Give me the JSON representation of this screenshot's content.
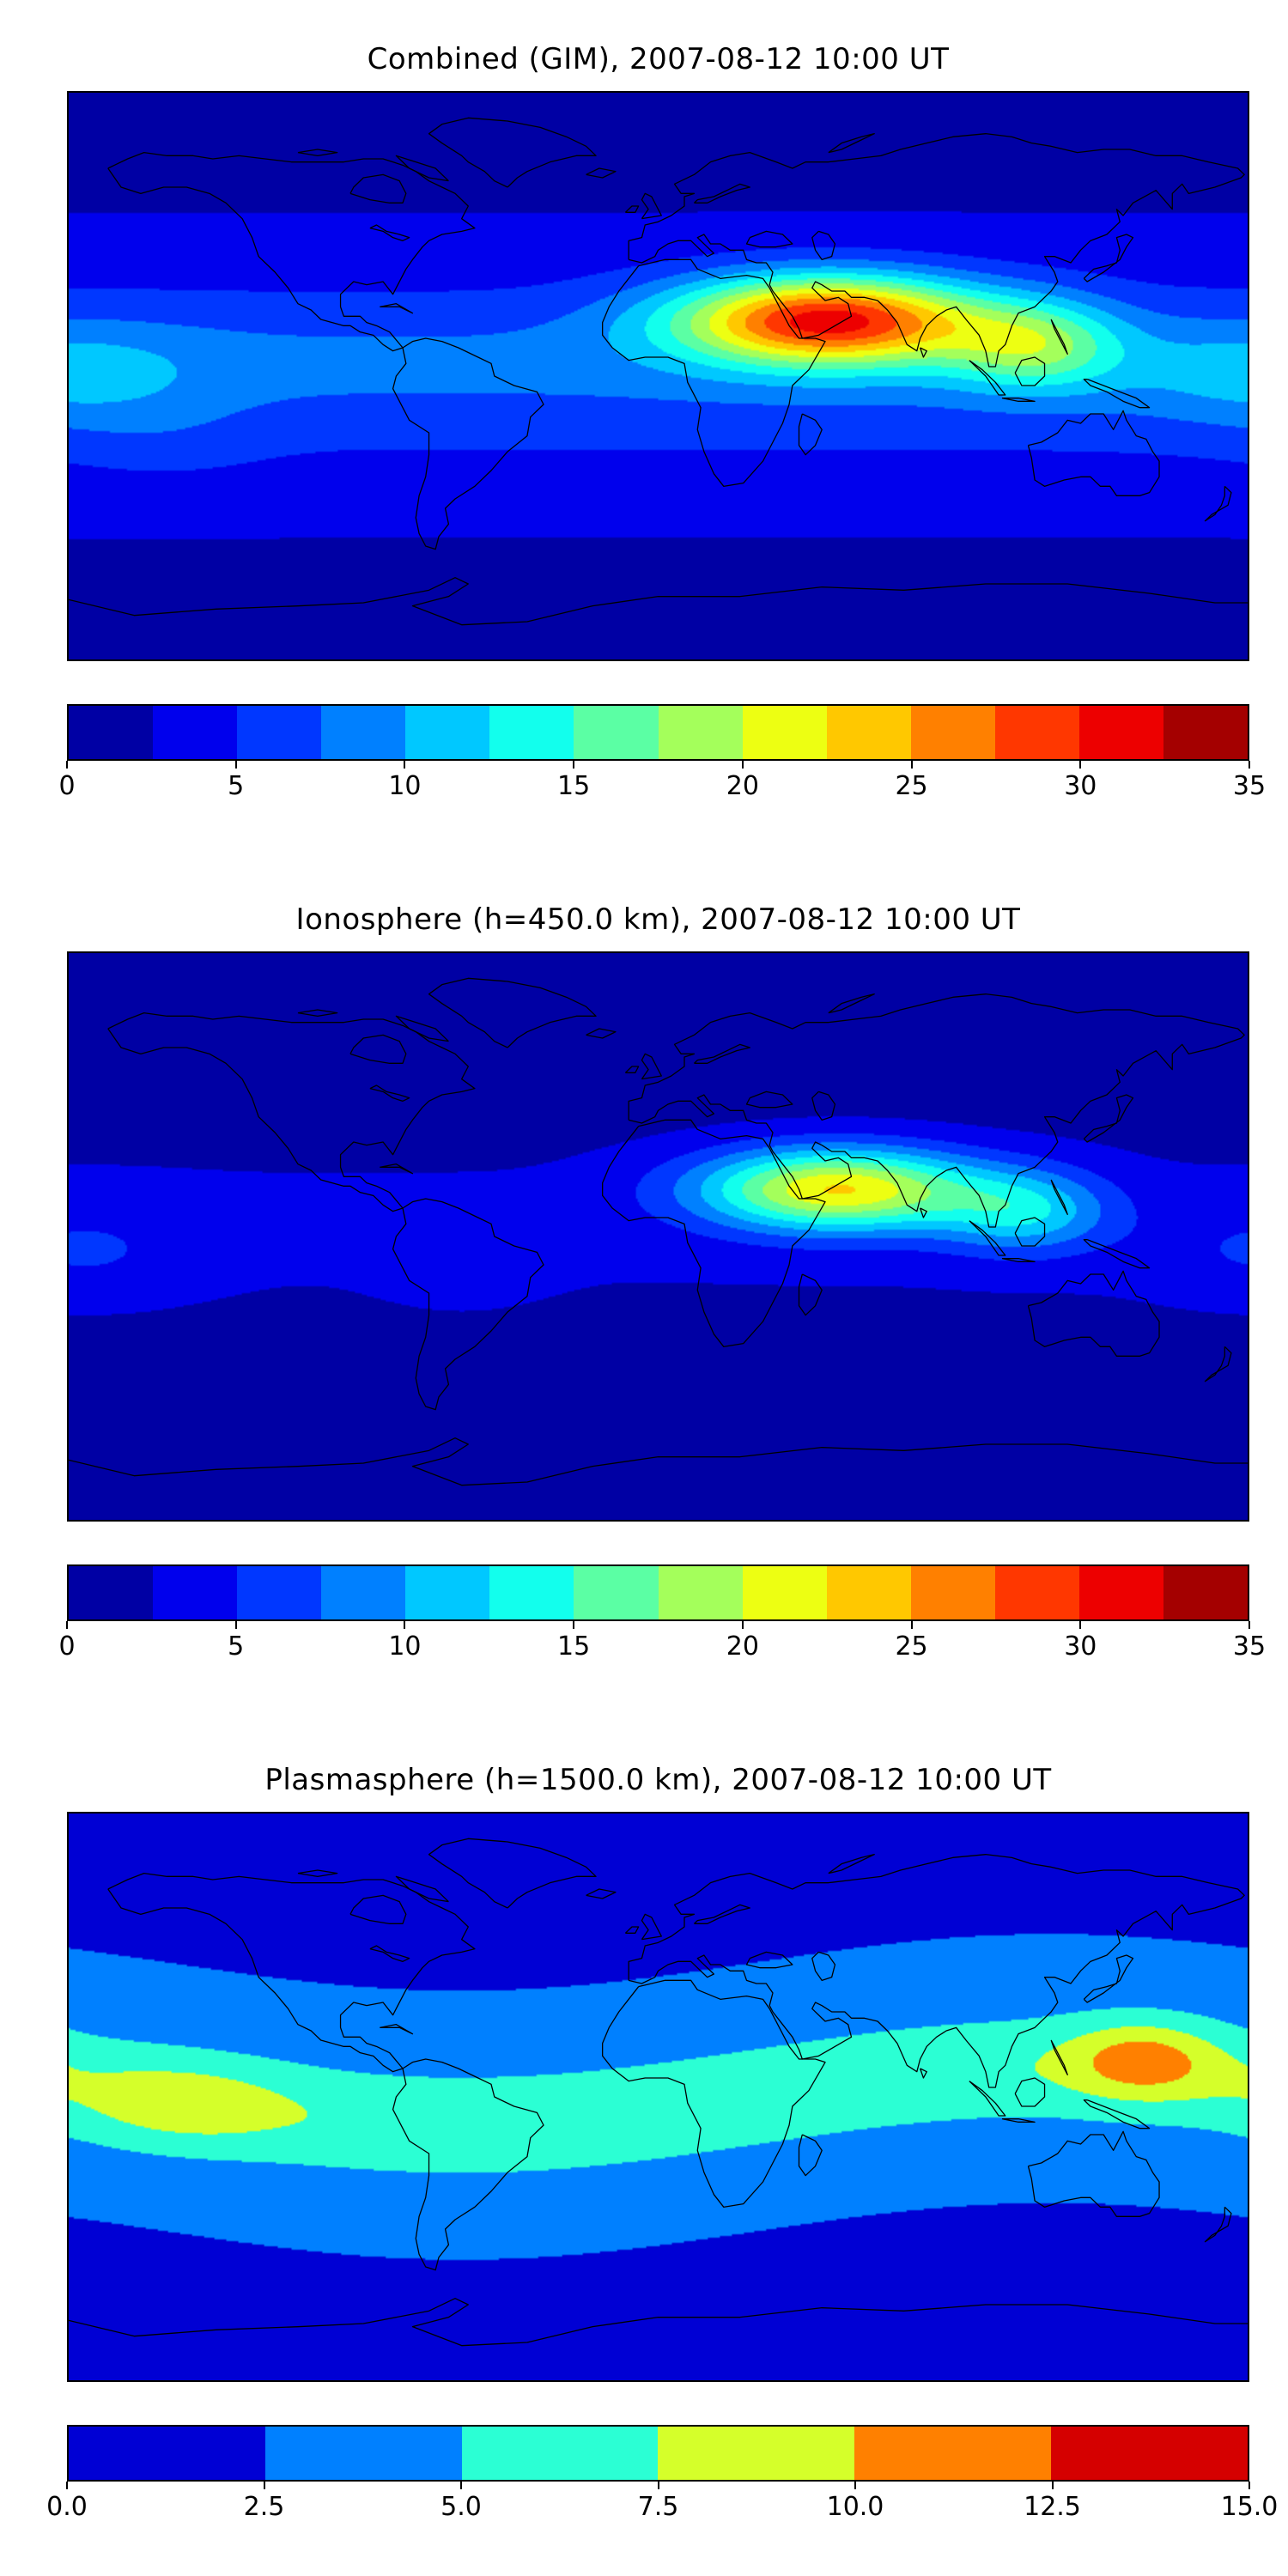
{
  "figure": {
    "background": "#ffffff",
    "text_color": "#000000",
    "map_border_color": "#000000",
    "coastline_color": "#000000"
  },
  "chart_data": [
    {
      "type": "heatmap",
      "title": "Combined (GIM), 2007-08-12 10:00 UT",
      "projection": "equirectangular",
      "lon_range": [
        -180,
        180
      ],
      "lat_range": [
        -90,
        90
      ],
      "colormap": "jet",
      "vmin": 0,
      "vmax": 35,
      "level_step": 2.5,
      "colorbar_ticks": [
        {
          "label": "0",
          "value": 0
        },
        {
          "label": "5",
          "value": 5
        },
        {
          "label": "10",
          "value": 10
        },
        {
          "label": "15",
          "value": 15
        },
        {
          "label": "20",
          "value": 20
        },
        {
          "label": "25",
          "value": 25
        },
        {
          "label": "30",
          "value": 30
        },
        {
          "label": "35",
          "value": 35
        }
      ],
      "field_model": {
        "base": 1.5,
        "lat_bands": [
          {
            "amp": 4.5,
            "center": 0,
            "sigma": 42,
            "tilt_amp": 0,
            "tilt_ref_lon": 0
          },
          {
            "amp": 2.2,
            "center": 5,
            "sigma": 18,
            "tilt_amp": 0,
            "tilt_ref_lon": 0
          }
        ],
        "blobs": [
          {
            "lon": 52,
            "lat": 18,
            "amp": 25,
            "slon": 46,
            "slat": 14
          },
          {
            "lon": 115,
            "lat": 10,
            "amp": 10,
            "slon": 26,
            "slat": 14
          },
          {
            "lon": -178,
            "lat": 0,
            "amp": 3.5,
            "slon": 38,
            "slat": 16
          },
          {
            "lon": -150,
            "lat": -20,
            "amp": 1.2,
            "slon": 30,
            "slat": 14
          }
        ]
      }
    },
    {
      "type": "heatmap",
      "title": "Ionosphere  (h=450.0 km), 2007-08-12 10:00 UT",
      "projection": "equirectangular",
      "lon_range": [
        -180,
        180
      ],
      "lat_range": [
        -90,
        90
      ],
      "colormap": "jet",
      "vmin": 0,
      "vmax": 35,
      "level_step": 2.5,
      "colorbar_ticks": [
        {
          "label": "0",
          "value": 0
        },
        {
          "label": "5",
          "value": 5
        },
        {
          "label": "10",
          "value": 10
        },
        {
          "label": "15",
          "value": 15
        },
        {
          "label": "20",
          "value": 20
        },
        {
          "label": "25",
          "value": 25
        },
        {
          "label": "30",
          "value": 30
        },
        {
          "label": "35",
          "value": 35
        }
      ],
      "field_model": {
        "base": 0.7,
        "lat_bands": [
          {
            "amp": 2.2,
            "center": 3,
            "sigma": 38,
            "tilt_amp": 0,
            "tilt_ref_lon": 0
          }
        ],
        "blobs": [
          {
            "lon": 55,
            "lat": 15,
            "amp": 20,
            "slon": 42,
            "slat": 13
          },
          {
            "lon": 112,
            "lat": 8,
            "amp": 9,
            "slon": 26,
            "slat": 13
          },
          {
            "lon": -175,
            "lat": -5,
            "amp": 2.5,
            "slon": 35,
            "slat": 16
          },
          {
            "lon": -60,
            "lat": -10,
            "amp": 1.2,
            "slon": 25,
            "slat": 14
          }
        ]
      }
    },
    {
      "type": "heatmap",
      "title": "Plasmasphere (h=1500.0 km), 2007-08-12 10:00 UT",
      "projection": "equirectangular",
      "lon_range": [
        -180,
        180
      ],
      "lat_range": [
        -90,
        90
      ],
      "colormap": "jet",
      "vmin": 0,
      "vmax": 15,
      "level_step": 2.5,
      "colorbar_ticks": [
        {
          "label": "0.0",
          "value": 0
        },
        {
          "label": "2.5",
          "value": 2.5
        },
        {
          "label": "5.0",
          "value": 5
        },
        {
          "label": "7.5",
          "value": 7.5
        },
        {
          "label": "10.0",
          "value": 10
        },
        {
          "label": "12.5",
          "value": 12.5
        },
        {
          "label": "15.0",
          "value": 15
        }
      ],
      "field_model": {
        "base": 1.2,
        "lat_bands": [
          {
            "amp": 3.2,
            "center": 0,
            "sigma": 45,
            "tilt_amp": 9,
            "tilt_ref_lon": 120
          },
          {
            "amp": 2.6,
            "center": 0,
            "sigma": 15,
            "tilt_amp": 9,
            "tilt_ref_lon": 120
          }
        ],
        "blobs": [
          {
            "lon": -145,
            "lat": -3,
            "amp": 2.6,
            "slon": 30,
            "slat": 13
          },
          {
            "lon": 148,
            "lat": 12,
            "amp": 5.0,
            "slon": 22,
            "slat": 12
          }
        ]
      }
    }
  ]
}
